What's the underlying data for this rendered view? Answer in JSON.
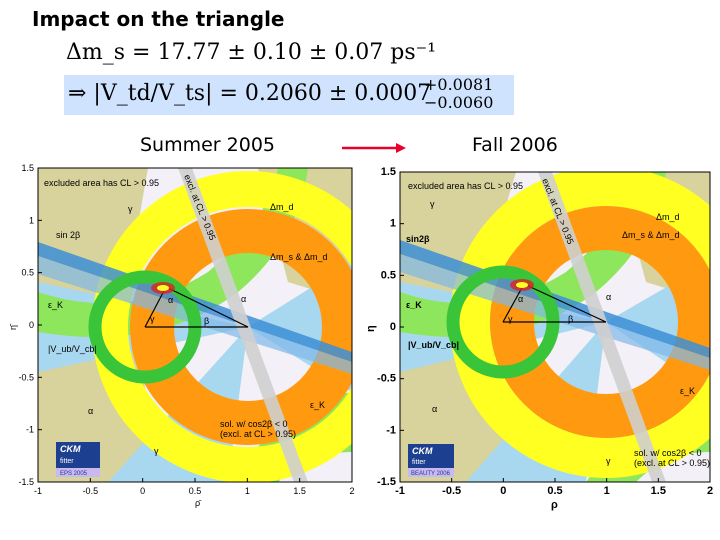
{
  "title": "Impact on the triangle",
  "eq1": "Δm_s = 17.77 ± 0.10 ± 0.07 ps⁻¹",
  "eq2": {
    "main": "⇒   |V_td/V_ts| = 0.2060 ± 0.0007",
    "sup": "+0.0081",
    "sub": "−0.0060"
  },
  "left_label": "Summer 2005",
  "right_label": "Fall 2006",
  "left_plot": {
    "excluded": "excluded area has CL > 0.95",
    "x_ticks": [
      "-1",
      "-0.5",
      "0",
      "0.5",
      "1",
      "1.5",
      "2"
    ],
    "y_ticks": [
      "1.5",
      "1",
      "0.5",
      "0",
      "-0.5",
      "-1",
      "-1.5"
    ],
    "xlabel": "ρ̄",
    "ylabel": "η̄",
    "regions": {
      "gamma1": "γ",
      "dmd": "Δm_d",
      "sin2b": "sin 2β",
      "dms": "Δm_s & Δm_d",
      "ek1": "ε_K",
      "alpha1": "α",
      "alpha2": "α",
      "beta": "β",
      "gamma2": "γ",
      "vub": "|V_ub/V_cb|",
      "ek2": "ε_K",
      "alpha3": "α",
      "gamma3": "γ",
      "sol1": "sol. w/ cos2β < 0",
      "sol2": "(excl. at CL > 0.95)",
      "cos2b": "excl. at CL > 0.95"
    },
    "ckm": "CKM",
    "fitter": "fitter",
    "tag": "EPS 2005"
  },
  "right_plot": {
    "excluded": "excluded area has CL > 0.95",
    "x_ticks": [
      "-1",
      "-0.5",
      "0",
      "0.5",
      "1",
      "1.5",
      "2"
    ],
    "y_ticks": [
      "1.5",
      "1",
      "0.5",
      "0",
      "-0.5",
      "-1",
      "-1.5"
    ],
    "xlabel": "ρ",
    "ylabel": "η",
    "regions": {
      "gamma1": "γ",
      "dmd": "Δm_d",
      "sin2b": "sin2β",
      "dms": "Δm_s & Δm_d",
      "ek1": "ε_K",
      "alpha1": "α",
      "alpha2": "α",
      "beta": "β",
      "gamma2": "γ",
      "vub": "|V_ub/V_cb|",
      "ek2": "ε_K",
      "alpha3": "α",
      "gamma3": "γ",
      "sol1": "sol. w/ cos2β < 0",
      "sol2": "(excl. at CL > 0.95)",
      "cos2b": "excl. at CL > 0.95"
    },
    "ckm": "CKM",
    "fitter": "fitter",
    "tag": "BEAUTY 2006"
  },
  "colors": {
    "equation_box": "#cfe3ff",
    "arrow": "#e8002a",
    "green": "#39c43a",
    "yellow": "#ffff22",
    "orange": "#ff9a10",
    "light_blue": "#a8d8f0",
    "blue_band": "#3d8fd6",
    "khaki": "#d8d29c",
    "light_green": "#8ee65c",
    "frame_bg": "#f3f0f7"
  }
}
